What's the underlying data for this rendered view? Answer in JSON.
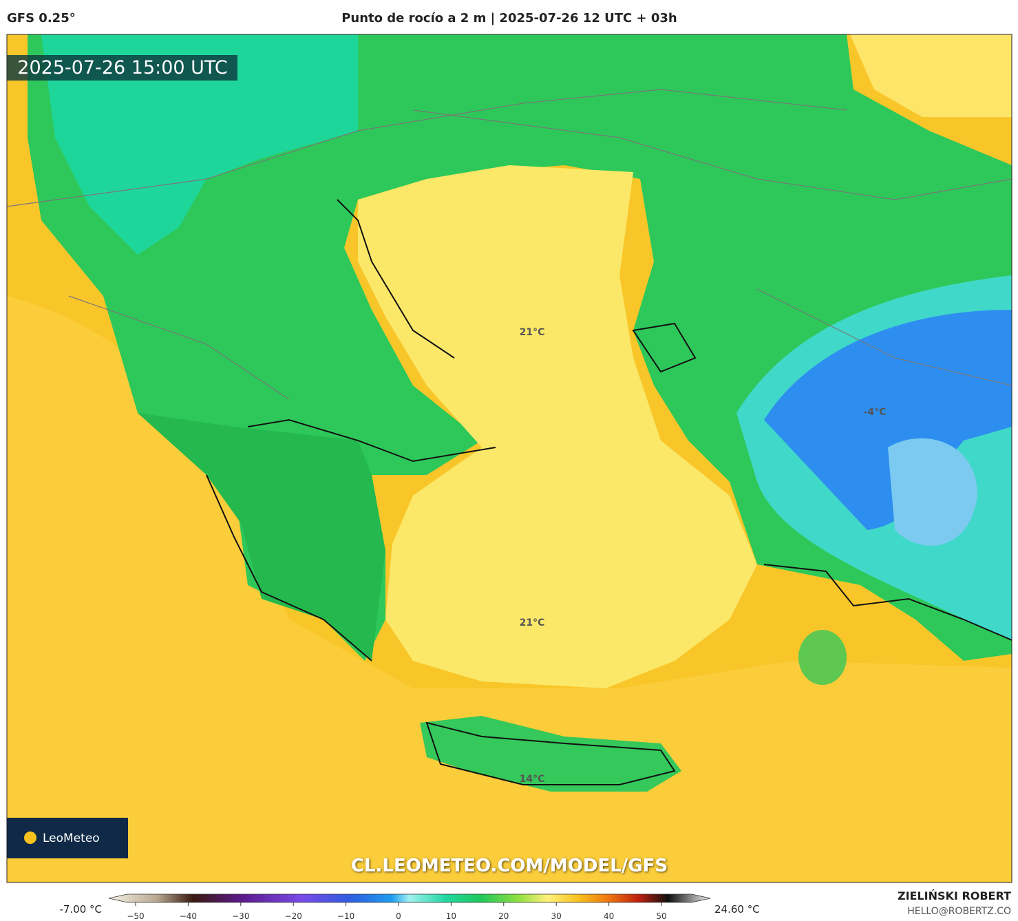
{
  "header": {
    "model": "GFS 0.25°",
    "title": "Punto de rocío a 2 m | 2025-07-26 12 UTC + 03h"
  },
  "map": {
    "timestamp": "2025-07-26 15:00 UTC",
    "labels": [
      "21°C",
      "21°C",
      "-4°C",
      "14°C"
    ],
    "logo": "LeoMeteo",
    "url": "CL.LEOMETEO.COM/MODEL/GFS"
  },
  "colorbar": {
    "min_label": "-7.00 °C",
    "max_label": "24.60 °C",
    "ticks": [
      "−50",
      "−40",
      "−30",
      "−20",
      "−10",
      "0",
      "10",
      "20",
      "30",
      "40",
      "50"
    ]
  },
  "footer": {
    "author": "ZIELIŃSKI ROBERT",
    "contact": "HELLO@ROBERTZ.CO"
  }
}
